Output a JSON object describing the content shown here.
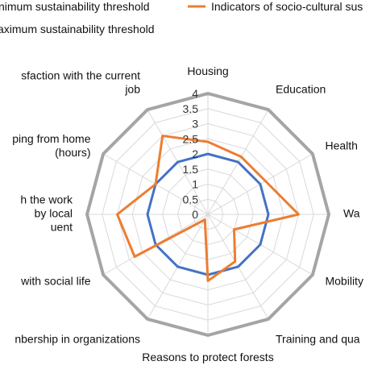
{
  "chart_data": {
    "type": "radar",
    "title": "",
    "axis_max": 4,
    "tick_step": 0.5,
    "tick_labels": [
      "0",
      "0.5",
      "1",
      "1.5",
      "2",
      "2.5",
      "3",
      "3.5",
      "4"
    ],
    "categories": [
      "Housing",
      "Education",
      "Health",
      "Wa",
      "Mobility",
      "Training and qua",
      "Reasons to protect forests",
      "nbership in organizations",
      "with social life",
      "h the work\nby local\nuent",
      "ping from home\n(hours)",
      "sfaction with the current\njob"
    ],
    "legend": [
      {
        "label": "nimum sustainability threshold",
        "color": "#4472c4"
      },
      {
        "label": "Indicators of socio-cultural sus",
        "color": "#ed7d31"
      },
      {
        "label": "aximum sustainability threshold",
        "color": "#a5a5a5"
      }
    ],
    "series": [
      {
        "legend_index": 0,
        "color": "#4472c4",
        "values": [
          2,
          2,
          2,
          2,
          2,
          2,
          2,
          2,
          2,
          2,
          2,
          2
        ]
      },
      {
        "legend_index": 1,
        "color": "#ed7d31",
        "values": [
          2.4,
          2.2,
          2.2,
          3,
          1,
          1.8,
          2.2,
          0.2,
          2.8,
          3,
          2,
          3
        ]
      },
      {
        "legend_index": 2,
        "color": "#a5a5a5",
        "values": [
          4,
          4,
          4,
          4,
          4,
          4,
          4,
          4,
          4,
          4,
          4,
          4
        ]
      }
    ]
  }
}
